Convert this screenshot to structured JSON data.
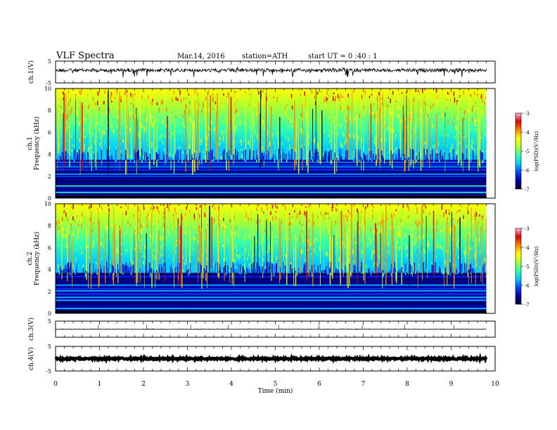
{
  "header": {
    "title": "VLF  Spectra",
    "date": "Mar.14,  2016",
    "station": "station=ATH",
    "start_ut": "start  UT  =   0  :40 : 1"
  },
  "chart_data": [
    {
      "type": "line",
      "panel": "ch1-waveform",
      "ylabel": "ch.1(V)",
      "ylim": [
        -5,
        5
      ],
      "yticks": [
        "5",
        "-5"
      ],
      "baseline": 0.8,
      "series": [
        {
          "color": "#000000"
        }
      ]
    },
    {
      "type": "heatmap",
      "panel": "ch1-spectrogram",
      "ylabel": "ch.1\nFrequency (kHz)",
      "ylim": [
        0,
        10
      ],
      "yticks": [
        "0",
        "2",
        "4",
        "6",
        "8",
        "10"
      ],
      "band_low_kHz": [
        0,
        3.5
      ],
      "colorbar": {
        "label": "log(PSD)(V²/Hz)",
        "min": -7,
        "max": -3,
        "ticks": [
          "-3",
          "-4",
          "-5",
          "-6",
          "-7"
        ]
      }
    },
    {
      "type": "heatmap",
      "panel": "ch2-spectrogram",
      "ylabel": "ch.2\nFrequency (kHz)",
      "ylim": [
        0,
        10
      ],
      "yticks": [
        "0",
        "2",
        "4",
        "6",
        "8",
        "10"
      ],
      "band_low_kHz": [
        0,
        3.7
      ],
      "colorbar": {
        "label": "log(PSD)(V²/Hz)",
        "min": -7,
        "max": -3,
        "ticks": [
          "-3",
          "-4",
          "-5",
          "-6",
          "-7"
        ]
      }
    },
    {
      "type": "line",
      "panel": "ch3-waveform",
      "ylabel": "ch.3(V)",
      "ylim": [
        -5,
        5
      ],
      "yticks": [
        "5"
      ],
      "baseline": 0.0,
      "series": [
        {
          "color": "#000000"
        }
      ]
    },
    {
      "type": "line",
      "panel": "ch4-waveform",
      "ylabel": "ch.4(V)",
      "ylim": [
        -5,
        5
      ],
      "yticks": [
        "5",
        "-5"
      ],
      "baseline": 0.0,
      "series": [
        {
          "color": "#000000"
        }
      ]
    }
  ],
  "x_axis": {
    "label": "Time  (min)",
    "range": [
      0,
      10
    ],
    "data_end": 9.8,
    "ticks": [
      "0",
      "1",
      "2",
      "3",
      "4",
      "5",
      "6",
      "7",
      "8",
      "9",
      "10"
    ]
  },
  "colorscale": [
    "#000033",
    "#0000aa",
    "#0044ff",
    "#00ccff",
    "#33ffaa",
    "#aaff33",
    "#ffff00",
    "#ff8800",
    "#dd0000",
    "#ffbbdd"
  ]
}
